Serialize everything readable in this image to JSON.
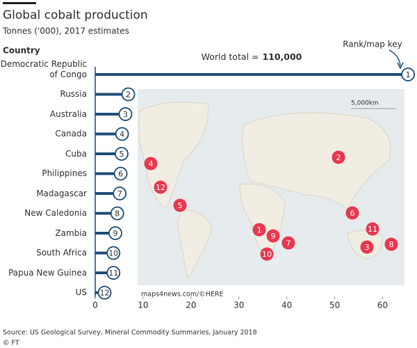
{
  "chart_data": {
    "type": "bar",
    "title": "Global cobalt production",
    "subtitle": "Tonnes ('000), 2017 estimates",
    "category_header": "Country",
    "rank_header": "Rank/map key",
    "annotation": {
      "text": "World total =",
      "value": "110,000"
    },
    "categories": [
      "Democratic Republic of Congo",
      "Russia",
      "Australia",
      "Canada",
      "Cuba",
      "Philippines",
      "Madagascar",
      "New Caledonia",
      "Zambia",
      "South Africa",
      "Papua New Guinea",
      "US"
    ],
    "values": [
      64,
      5.6,
      5,
      4.3,
      4.2,
      4,
      3.8,
      3.3,
      2.9,
      2.5,
      2.5,
      0.65
    ],
    "ranks": [
      "1",
      "2",
      "3",
      "4",
      "5",
      "6",
      "7",
      "8",
      "9",
      "10",
      "11",
      "12"
    ],
    "color": "#1f4e79",
    "marker_color": "#e8384f",
    "xlim": [
      0,
      65
    ],
    "xticks": [
      0,
      10,
      20,
      30,
      40,
      50,
      60
    ],
    "map_scale": "5,000km",
    "map_credit": "maps4news.com/©HERE",
    "source": "Source: US Geological Survey, Mineral Commodity Summaries, January 2018",
    "copyright": "© FT"
  }
}
